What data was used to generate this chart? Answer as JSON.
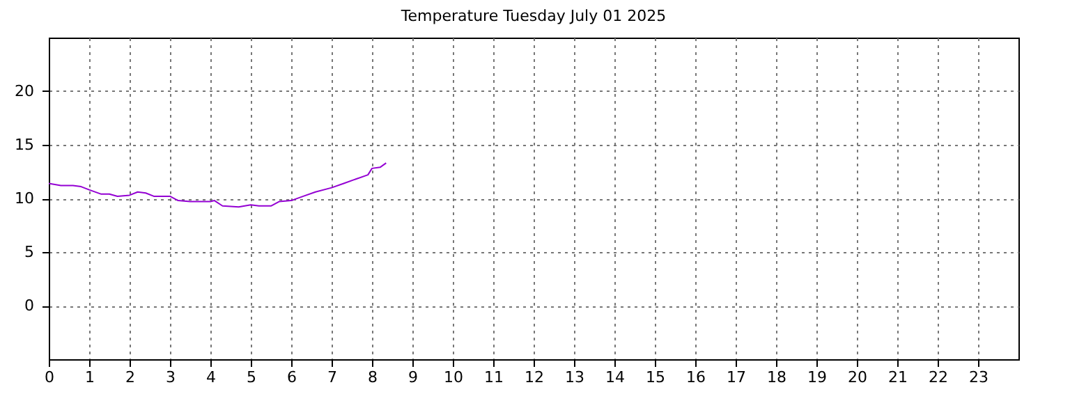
{
  "chart_data": {
    "type": "line",
    "title": "Temperature Tuesday July 01 2025",
    "x": [
      0,
      0.3,
      0.6,
      0.8,
      1.0,
      1.3,
      1.5,
      1.7,
      2.0,
      2.2,
      2.4,
      2.6,
      3.0,
      3.2,
      3.5,
      4.0,
      4.1,
      4.3,
      4.7,
      5.0,
      5.2,
      5.5,
      5.7,
      6.0,
      6.3,
      6.6,
      7.0,
      7.3,
      7.6,
      7.9,
      8.0,
      8.2,
      8.35
    ],
    "series": [
      {
        "color": "#9400d3",
        "values": [
          11.4,
          11.2,
          11.2,
          11.1,
          10.8,
          10.4,
          10.4,
          10.2,
          10.3,
          10.6,
          10.5,
          10.2,
          10.2,
          9.8,
          9.7,
          9.7,
          9.8,
          9.3,
          9.2,
          9.4,
          9.3,
          9.3,
          9.7,
          9.8,
          10.2,
          10.6,
          11.0,
          11.4,
          11.8,
          12.2,
          12.8,
          12.9,
          13.3
        ]
      }
    ],
    "xlim": [
      0,
      24
    ],
    "xticks": [
      0,
      1,
      2,
      3,
      4,
      5,
      6,
      7,
      8,
      9,
      10,
      11,
      12,
      13,
      14,
      15,
      16,
      17,
      18,
      19,
      20,
      21,
      22,
      23
    ],
    "ylim": [
      -5,
      25
    ],
    "yticks": [
      0,
      5,
      10,
      15,
      20
    ],
    "grid": true
  }
}
